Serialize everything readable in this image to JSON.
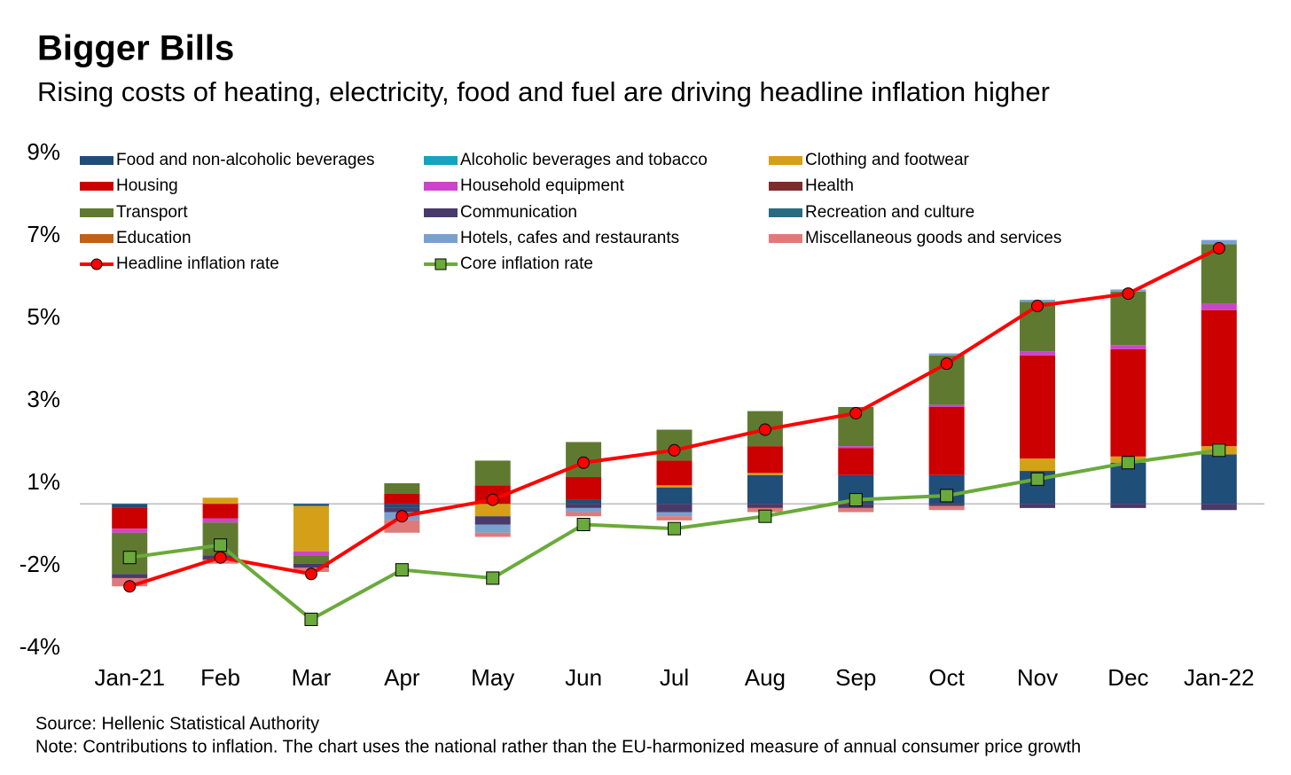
{
  "chart_data": {
    "type": "bar",
    "title": "Bigger Bills",
    "subtitle": "Rising costs of heating, electricity, food and fuel are driving headline inflation higher",
    "source": "Source: Hellenic Statistical Authority",
    "note": "Note: Contributions to inflation. The chart uses the national rather than the EU-harmonized measure of annual consumer price growth",
    "categories": [
      "Jan-21",
      "Feb",
      "Mar",
      "Apr",
      "May",
      "Jun",
      "Jul",
      "Aug",
      "Sep",
      "Oct",
      "Nov",
      "Dec",
      "Jan-22"
    ],
    "ylim": [
      -3.5,
      8.5
    ],
    "yticks": [
      {
        "value": -3.5,
        "label": "-4%"
      },
      {
        "value": -1.5,
        "label": "-2%"
      },
      {
        "value": 0.5,
        "label": "1%"
      },
      {
        "value": 2.5,
        "label": "3%"
      },
      {
        "value": 4.5,
        "label": "5%"
      },
      {
        "value": 6.5,
        "label": "7%"
      },
      {
        "value": 8.5,
        "label": "9%"
      }
    ],
    "legend": "top",
    "series": [
      {
        "name": "Food and non-alcoholic beverages",
        "color": "#1f4e79",
        "values": [
          -0.1,
          0,
          -0.05,
          -0.1,
          0,
          0.1,
          0.4,
          0.7,
          0.7,
          0.7,
          0.8,
          1.0,
          1.2
        ]
      },
      {
        "name": "Alcoholic beverages and tobacco",
        "color": "#17a2c0",
        "values": [
          0,
          0,
          0,
          0,
          0,
          0,
          0,
          0,
          0,
          0,
          0,
          0,
          0
        ]
      },
      {
        "name": "Clothing and footwear",
        "color": "#d4a017",
        "values": [
          0,
          0.15,
          -1.1,
          0,
          -0.3,
          0,
          0.05,
          0.05,
          0,
          0,
          0.3,
          0.15,
          0.2
        ]
      },
      {
        "name": "Housing",
        "color": "#cc0000",
        "values": [
          -0.5,
          -0.35,
          0,
          0.25,
          0.45,
          0.55,
          0.6,
          0.65,
          0.65,
          1.65,
          2.5,
          2.6,
          3.3
        ]
      },
      {
        "name": "Household equipment",
        "color": "#cc44cc",
        "values": [
          -0.1,
          -0.1,
          -0.1,
          0,
          0,
          0,
          0,
          0,
          0.05,
          0.05,
          0.1,
          0.1,
          0.15
        ]
      },
      {
        "name": "Health",
        "color": "#7b2c2c",
        "values": [
          0,
          0,
          0,
          0,
          0,
          0,
          0,
          0,
          0,
          0,
          0,
          0,
          0
        ]
      },
      {
        "name": "Transport",
        "color": "#5f7a30",
        "values": [
          -1.0,
          -0.8,
          -0.2,
          0.25,
          0.6,
          0.85,
          0.75,
          0.85,
          0.95,
          1.2,
          1.2,
          1.3,
          1.45
        ]
      },
      {
        "name": "Communication",
        "color": "#4a3a6a",
        "values": [
          -0.1,
          -0.1,
          -0.1,
          -0.1,
          -0.2,
          -0.1,
          -0.2,
          -0.1,
          -0.1,
          -0.05,
          -0.1,
          -0.1,
          -0.15
        ]
      },
      {
        "name": "Recreation and culture",
        "color": "#2a6b7f",
        "values": [
          0,
          0,
          0,
          0,
          0,
          0,
          0,
          0,
          0,
          0,
          0,
          0,
          0
        ]
      },
      {
        "name": "Education",
        "color": "#c0601a",
        "values": [
          0,
          0,
          0,
          0,
          0,
          0,
          0,
          0,
          0,
          0,
          0,
          0,
          0
        ]
      },
      {
        "name": "Hotels, cafes and restaurants",
        "color": "#7aa0d0",
        "values": [
          0,
          0,
          0,
          -0.2,
          -0.2,
          -0.1,
          -0.1,
          0,
          0,
          0.05,
          0.05,
          0.05,
          0.1
        ]
      },
      {
        "name": "Miscellaneous goods and services",
        "color": "#e07a7a",
        "values": [
          -0.2,
          -0.1,
          -0.1,
          -0.3,
          -0.1,
          -0.1,
          -0.1,
          -0.1,
          -0.1,
          -0.1,
          0,
          0,
          0
        ]
      },
      {
        "name": "Headline inflation rate",
        "type": "line",
        "color": "#ff0000",
        "values": [
          -2.0,
          -1.3,
          -1.7,
          -0.3,
          0.1,
          1.0,
          1.3,
          1.8,
          2.2,
          3.4,
          4.8,
          5.1,
          6.2
        ]
      },
      {
        "name": "Core inflation rate",
        "type": "line",
        "color": "#6aaa3a",
        "values": [
          -1.3,
          -1.0,
          -2.8,
          -1.6,
          -1.8,
          -0.5,
          -0.6,
          -0.3,
          0.1,
          0.2,
          0.6,
          1.0,
          1.3
        ]
      }
    ]
  }
}
